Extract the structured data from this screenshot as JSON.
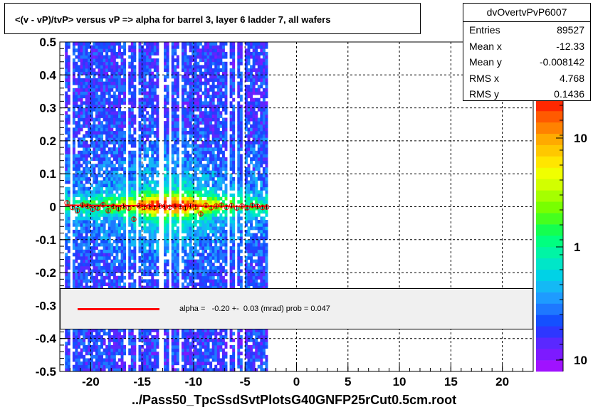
{
  "title": "<(v - vP)/tvP>  versus   vP =>  alpha for barrel 3, layer 6 ladder 7, all wafers",
  "stats": {
    "name": "dvOvertvPvP6007",
    "rows": [
      {
        "key": "Entries",
        "value": "89527"
      },
      {
        "key": "Mean x",
        "value": "-12.33"
      },
      {
        "key": "Mean y",
        "value": "-0.008142"
      },
      {
        "key": "RMS x",
        "value": "4.768"
      },
      {
        "key": "RMS y",
        "value": "0.1436"
      }
    ]
  },
  "fit": {
    "text": "alpha =   -0.20 +-  0.03 (mrad) prob = 0.047",
    "line_color": "#ff0000"
  },
  "xtitle": "../Pass50_TpcSsdSvtPlotsG40GNFP25rCut0.5cm.root",
  "colors": {
    "palette": [
      "#a012ff",
      "#7d1aff",
      "#5a28ff",
      "#2e37ff",
      "#1450ff",
      "#1e78ff",
      "#1e9bff",
      "#14b9f5",
      "#00d2e6",
      "#00e6c8",
      "#00f5a5",
      "#00ff80",
      "#14ff50",
      "#46ff1e",
      "#78ff00",
      "#a5ff00",
      "#d2ff00",
      "#f0ff00",
      "#ffe600",
      "#ffc800",
      "#ffaa00",
      "#ff8200",
      "#ff5a00",
      "#ff2800"
    ],
    "profile_marker": "#ff0000"
  },
  "chart_data": {
    "type": "heatmap",
    "title": "<(v - vP)/tvP>  versus   vP =>  alpha for barrel 3, layer 6 ladder 7, all wafers",
    "xlabel": "../Pass50_TpcSsdSvtPlotsG40GNFP25rCut0.5cm.root",
    "ylabel": "",
    "xlim": [
      -23,
      23
    ],
    "ylim": [
      -0.5,
      0.5
    ],
    "x_ticks": [
      -20,
      -15,
      -10,
      -5,
      0,
      5,
      10,
      15,
      20
    ],
    "y_ticks": [
      -0.5,
      -0.4,
      -0.3,
      -0.2,
      -0.1,
      0,
      0.1,
      0.2,
      0.3,
      0.4,
      0.5
    ],
    "colorbar_labels": [
      "10",
      "1",
      "10"
    ],
    "grid": true,
    "data_x_range": [
      -22.5,
      -2.8
    ],
    "density_peak": {
      "x": -12.5,
      "y": 0.0
    },
    "profile": {
      "x": [
        -22.3,
        -21.8,
        -21.3,
        -20.8,
        -20.3,
        -19.8,
        -19.3,
        -18.8,
        -18.3,
        -17.8,
        -17.3,
        -16.8,
        -16.3,
        -15.8,
        -15.3,
        -14.8,
        -14.3,
        -13.8,
        -13.3,
        -12.8,
        -12.3,
        -11.8,
        -11.3,
        -10.8,
        -10.3,
        -9.8,
        -9.3,
        -8.8,
        -8.3,
        -7.8,
        -7.3,
        -6.8,
        -6.3,
        -5.8,
        -5.3,
        -4.8,
        -4.3,
        -3.8,
        -3.3,
        -2.9
      ],
      "y": [
        0.012,
        -0.002,
        -0.012,
        0.005,
        0.002,
        -0.008,
        -0.004,
        0.006,
        -0.012,
        0.001,
        -0.006,
        0.002,
        -0.004,
        -0.038,
        0.003,
        -0.002,
        0.001,
        -0.003,
        0.002,
        0.001,
        -0.002,
        0.002,
        0.0,
        -0.004,
        0.002,
        -0.001,
        -0.022,
        0.004,
        -0.003,
        0.002,
        0.005,
        -0.002,
        0.003,
        -0.004,
        0.002,
        -0.003,
        0.004,
        0.001,
        -0.002,
        -0.001
      ]
    },
    "fit_line": {
      "slope_mrad": -0.2,
      "error_mrad": 0.03,
      "prob": 0.047,
      "intercept": 0.0
    }
  }
}
